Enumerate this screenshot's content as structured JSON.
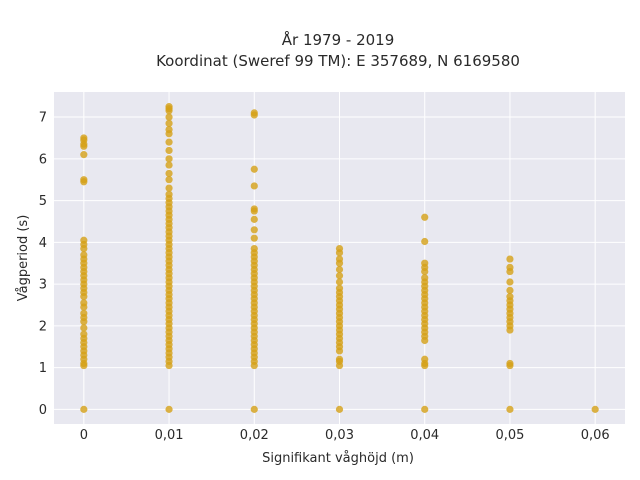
{
  "chart_data": {
    "type": "scatter",
    "title": "År 1979 - 2019",
    "subtitle": "Koordinat (Sweref 99 TM): E 357689, N 6169580",
    "xlabel": "Signifikant våghöjd (m)",
    "ylabel": "Vågperiod (s)",
    "xlim": [
      -0.0035,
      0.0635
    ],
    "ylim": [
      -0.35,
      7.6
    ],
    "grid": true,
    "x_ticks": [
      0,
      0.01,
      0.02,
      0.03,
      0.04,
      0.05,
      0.06
    ],
    "x_tick_labels": [
      "0",
      "0,01",
      "0,02",
      "0,03",
      "0,04",
      "0,05",
      "0,06"
    ],
    "y_ticks": [
      0,
      1,
      2,
      3,
      4,
      5,
      6,
      7
    ],
    "y_tick_labels": [
      "0",
      "1",
      "2",
      "3",
      "4",
      "5",
      "6",
      "7"
    ],
    "colors": {
      "marker": "#d4a017",
      "plot_bg": "#e8e8f0",
      "grid": "#ffffff"
    },
    "series": [
      {
        "points": [
          [
            0,
            0
          ],
          [
            0,
            1.05
          ],
          [
            0,
            1.1
          ],
          [
            0,
            1.2
          ],
          [
            0,
            1.3
          ],
          [
            0,
            1.4
          ],
          [
            0,
            1.5
          ],
          [
            0,
            1.6
          ],
          [
            0,
            1.7
          ],
          [
            0,
            1.8
          ],
          [
            0,
            1.95
          ],
          [
            0,
            2.1
          ],
          [
            0,
            2.2
          ],
          [
            0,
            2.3
          ],
          [
            0,
            2.45
          ],
          [
            0,
            2.55
          ],
          [
            0,
            2.7
          ],
          [
            0,
            2.8
          ],
          [
            0,
            2.9
          ],
          [
            0,
            3.0
          ],
          [
            0,
            3.1
          ],
          [
            0,
            3.2
          ],
          [
            0,
            3.3
          ],
          [
            0,
            3.4
          ],
          [
            0,
            3.5
          ],
          [
            0,
            3.6
          ],
          [
            0,
            3.7
          ],
          [
            0,
            3.85
          ],
          [
            0,
            3.95
          ],
          [
            0,
            4.05
          ],
          [
            0,
            5.45
          ],
          [
            0,
            5.5
          ],
          [
            0,
            6.1
          ],
          [
            0,
            6.3
          ],
          [
            0,
            6.35
          ],
          [
            0,
            6.45
          ],
          [
            0,
            6.5
          ],
          [
            0.01,
            0
          ],
          [
            0.01,
            1.05
          ],
          [
            0.01,
            1.15
          ],
          [
            0.01,
            1.25
          ],
          [
            0.01,
            1.35
          ],
          [
            0.01,
            1.45
          ],
          [
            0.01,
            1.55
          ],
          [
            0.01,
            1.65
          ],
          [
            0.01,
            1.75
          ],
          [
            0.01,
            1.85
          ],
          [
            0.01,
            1.95
          ],
          [
            0.01,
            2.05
          ],
          [
            0.01,
            2.15
          ],
          [
            0.01,
            2.25
          ],
          [
            0.01,
            2.35
          ],
          [
            0.01,
            2.45
          ],
          [
            0.01,
            2.55
          ],
          [
            0.01,
            2.65
          ],
          [
            0.01,
            2.75
          ],
          [
            0.01,
            2.85
          ],
          [
            0.01,
            2.95
          ],
          [
            0.01,
            3.05
          ],
          [
            0.01,
            3.15
          ],
          [
            0.01,
            3.25
          ],
          [
            0.01,
            3.35
          ],
          [
            0.01,
            3.45
          ],
          [
            0.01,
            3.55
          ],
          [
            0.01,
            3.65
          ],
          [
            0.01,
            3.75
          ],
          [
            0.01,
            3.85
          ],
          [
            0.01,
            3.95
          ],
          [
            0.01,
            4.05
          ],
          [
            0.01,
            4.15
          ],
          [
            0.01,
            4.25
          ],
          [
            0.01,
            4.35
          ],
          [
            0.01,
            4.45
          ],
          [
            0.01,
            4.55
          ],
          [
            0.01,
            4.65
          ],
          [
            0.01,
            4.75
          ],
          [
            0.01,
            4.85
          ],
          [
            0.01,
            4.95
          ],
          [
            0.01,
            5.05
          ],
          [
            0.01,
            5.15
          ],
          [
            0.01,
            5.3
          ],
          [
            0.01,
            5.5
          ],
          [
            0.01,
            5.65
          ],
          [
            0.01,
            5.85
          ],
          [
            0.01,
            6.0
          ],
          [
            0.01,
            6.2
          ],
          [
            0.01,
            6.4
          ],
          [
            0.01,
            6.6
          ],
          [
            0.01,
            6.7
          ],
          [
            0.01,
            6.85
          ],
          [
            0.01,
            7.0
          ],
          [
            0.01,
            7.15
          ],
          [
            0.01,
            7.2
          ],
          [
            0.01,
            7.25
          ],
          [
            0.02,
            0
          ],
          [
            0.02,
            1.05
          ],
          [
            0.02,
            1.15
          ],
          [
            0.02,
            1.25
          ],
          [
            0.02,
            1.35
          ],
          [
            0.02,
            1.45
          ],
          [
            0.02,
            1.55
          ],
          [
            0.02,
            1.65
          ],
          [
            0.02,
            1.75
          ],
          [
            0.02,
            1.85
          ],
          [
            0.02,
            1.95
          ],
          [
            0.02,
            2.05
          ],
          [
            0.02,
            2.15
          ],
          [
            0.02,
            2.25
          ],
          [
            0.02,
            2.35
          ],
          [
            0.02,
            2.45
          ],
          [
            0.02,
            2.55
          ],
          [
            0.02,
            2.65
          ],
          [
            0.02,
            2.75
          ],
          [
            0.02,
            2.85
          ],
          [
            0.02,
            2.95
          ],
          [
            0.02,
            3.05
          ],
          [
            0.02,
            3.15
          ],
          [
            0.02,
            3.25
          ],
          [
            0.02,
            3.35
          ],
          [
            0.02,
            3.45
          ],
          [
            0.02,
            3.55
          ],
          [
            0.02,
            3.65
          ],
          [
            0.02,
            3.75
          ],
          [
            0.02,
            3.85
          ],
          [
            0.02,
            4.1
          ],
          [
            0.02,
            4.3
          ],
          [
            0.02,
            4.55
          ],
          [
            0.02,
            4.75
          ],
          [
            0.02,
            4.8
          ],
          [
            0.02,
            5.35
          ],
          [
            0.02,
            5.75
          ],
          [
            0.02,
            7.05
          ],
          [
            0.02,
            7.1
          ],
          [
            0.03,
            0
          ],
          [
            0.03,
            1.05
          ],
          [
            0.03,
            1.15
          ],
          [
            0.03,
            1.2
          ],
          [
            0.03,
            1.4
          ],
          [
            0.03,
            1.5
          ],
          [
            0.03,
            1.6
          ],
          [
            0.03,
            1.7
          ],
          [
            0.03,
            1.8
          ],
          [
            0.03,
            1.9
          ],
          [
            0.03,
            2.0
          ],
          [
            0.03,
            2.1
          ],
          [
            0.03,
            2.2
          ],
          [
            0.03,
            2.3
          ],
          [
            0.03,
            2.4
          ],
          [
            0.03,
            2.5
          ],
          [
            0.03,
            2.6
          ],
          [
            0.03,
            2.7
          ],
          [
            0.03,
            2.8
          ],
          [
            0.03,
            2.9
          ],
          [
            0.03,
            3.05
          ],
          [
            0.03,
            3.2
          ],
          [
            0.03,
            3.35
          ],
          [
            0.03,
            3.5
          ],
          [
            0.03,
            3.6
          ],
          [
            0.03,
            3.75
          ],
          [
            0.03,
            3.85
          ],
          [
            0.04,
            0
          ],
          [
            0.04,
            1.05
          ],
          [
            0.04,
            1.1
          ],
          [
            0.04,
            1.2
          ],
          [
            0.04,
            1.65
          ],
          [
            0.04,
            1.75
          ],
          [
            0.04,
            1.85
          ],
          [
            0.04,
            1.95
          ],
          [
            0.04,
            2.05
          ],
          [
            0.04,
            2.15
          ],
          [
            0.04,
            2.25
          ],
          [
            0.04,
            2.35
          ],
          [
            0.04,
            2.45
          ],
          [
            0.04,
            2.55
          ],
          [
            0.04,
            2.65
          ],
          [
            0.04,
            2.75
          ],
          [
            0.04,
            2.85
          ],
          [
            0.04,
            2.95
          ],
          [
            0.04,
            3.05
          ],
          [
            0.04,
            3.15
          ],
          [
            0.04,
            3.3
          ],
          [
            0.04,
            3.4
          ],
          [
            0.04,
            3.5
          ],
          [
            0.04,
            4.02
          ],
          [
            0.04,
            4.6
          ],
          [
            0.05,
            0
          ],
          [
            0.05,
            1.05
          ],
          [
            0.05,
            1.1
          ],
          [
            0.05,
            1.9
          ],
          [
            0.05,
            2.0
          ],
          [
            0.05,
            2.1
          ],
          [
            0.05,
            2.2
          ],
          [
            0.05,
            2.3
          ],
          [
            0.05,
            2.4
          ],
          [
            0.05,
            2.5
          ],
          [
            0.05,
            2.6
          ],
          [
            0.05,
            2.7
          ],
          [
            0.05,
            2.85
          ],
          [
            0.05,
            3.05
          ],
          [
            0.05,
            3.3
          ],
          [
            0.05,
            3.4
          ],
          [
            0.05,
            3.6
          ],
          [
            0.06,
            0
          ]
        ]
      }
    ]
  }
}
